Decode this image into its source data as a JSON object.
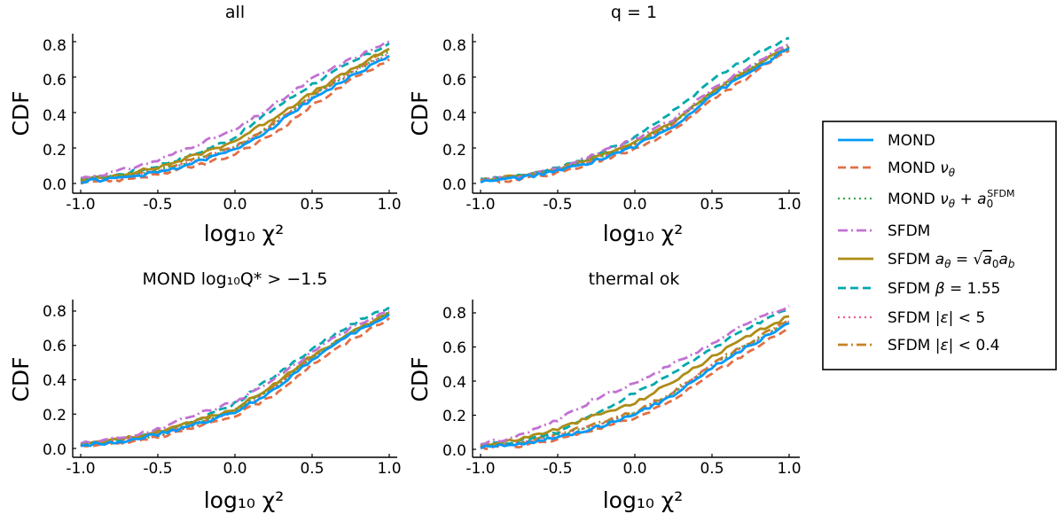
{
  "figure": {
    "legend_placement": "right",
    "legend": [
      {
        "id": "mond",
        "label": "MOND",
        "color": "#009AFA",
        "dash": "solid"
      },
      {
        "id": "mond_nu",
        "label": "MOND ν_θ",
        "color": "#E26F46",
        "dash": "dash"
      },
      {
        "id": "mond_nu_a0",
        "label": "MOND ν_θ + a_0^SFDM",
        "color": "#3EA44E",
        "dash": "dot"
      },
      {
        "id": "sfdm",
        "label": "SFDM",
        "color": "#C271D2",
        "dash": "dashdot"
      },
      {
        "id": "sfdm_atheta",
        "label": "SFDM a_θ = √(a_0 a_b)",
        "color": "#AC8D18",
        "dash": "solid"
      },
      {
        "id": "sfdm_beta",
        "label": "SFDM β = 1.55",
        "color": "#00A9AD",
        "dash": "dash"
      },
      {
        "id": "sfdm_eps5",
        "label": "SFDM |ε| < 5",
        "color": "#ED5D92",
        "dash": "dot"
      },
      {
        "id": "sfdm_eps04",
        "label": "SFDM |ε| < 0.4",
        "color": "#C68225",
        "dash": "dashdot"
      }
    ]
  },
  "chart_data": [
    {
      "type": "line",
      "title": "all",
      "xlabel": "log₁₀ χ²",
      "ylabel": "CDF",
      "xlim": [
        -1.05,
        1.05
      ],
      "ylim": [
        -0.02,
        0.84
      ],
      "xticks": [
        "-1.0",
        "-0.5",
        "0.0",
        "0.5",
        "1.0"
      ],
      "yticks": [
        "0.0",
        "0.2",
        "0.4",
        "0.6",
        "0.8"
      ],
      "grid": false,
      "x": [
        -1.0,
        -0.75,
        -0.5,
        -0.25,
        0.0,
        0.25,
        0.5,
        0.75,
        1.0
      ],
      "series": [
        {
          "name": "MOND",
          "values": [
            0.01,
            0.03,
            0.06,
            0.12,
            0.19,
            0.32,
            0.48,
            0.6,
            0.72
          ]
        },
        {
          "name": "MOND ν_θ",
          "values": [
            0.01,
            0.02,
            0.05,
            0.1,
            0.16,
            0.28,
            0.44,
            0.58,
            0.7
          ]
        },
        {
          "name": "MOND ν_θ + a_0^SFDM",
          "values": [
            0.02,
            0.04,
            0.07,
            0.13,
            0.2,
            0.33,
            0.49,
            0.62,
            0.74
          ]
        },
        {
          "name": "SFDM",
          "values": [
            0.03,
            0.07,
            0.13,
            0.22,
            0.3,
            0.44,
            0.59,
            0.7,
            0.8
          ]
        },
        {
          "name": "SFDM a_θ = √(a_0 a_b)",
          "values": [
            0.02,
            0.05,
            0.09,
            0.16,
            0.24,
            0.37,
            0.51,
            0.64,
            0.76
          ]
        },
        {
          "name": "SFDM β = 1.55",
          "values": [
            0.02,
            0.05,
            0.1,
            0.17,
            0.26,
            0.42,
            0.56,
            0.68,
            0.79
          ]
        },
        {
          "name": "SFDM |ε| < 5",
          "values": [
            0.02,
            0.04,
            0.07,
            0.13,
            0.2,
            0.33,
            0.49,
            0.62,
            0.74
          ]
        },
        {
          "name": "SFDM |ε| < 0.4",
          "values": [
            0.02,
            0.04,
            0.08,
            0.14,
            0.21,
            0.34,
            0.5,
            0.63,
            0.75
          ]
        }
      ]
    },
    {
      "type": "line",
      "title": "q = 1",
      "xlabel": "log₁₀ χ²",
      "ylabel": "CDF",
      "xlim": [
        -1.05,
        1.05
      ],
      "ylim": [
        -0.02,
        0.84
      ],
      "xticks": [
        "-1.0",
        "-0.5",
        "0.0",
        "0.5",
        "1.0"
      ],
      "yticks": [
        "0.0",
        "0.2",
        "0.4",
        "0.6",
        "0.8"
      ],
      "grid": false,
      "x": [
        -1.0,
        -0.75,
        -0.5,
        -0.25,
        0.0,
        0.25,
        0.5,
        0.75,
        1.0
      ],
      "series": [
        {
          "name": "MOND",
          "values": [
            0.01,
            0.03,
            0.07,
            0.13,
            0.21,
            0.32,
            0.5,
            0.63,
            0.76
          ]
        },
        {
          "name": "MOND ν_θ",
          "values": [
            0.01,
            0.02,
            0.06,
            0.12,
            0.19,
            0.3,
            0.47,
            0.61,
            0.75
          ]
        },
        {
          "name": "MOND ν_θ + a_0^SFDM",
          "values": [
            0.02,
            0.04,
            0.08,
            0.14,
            0.22,
            0.34,
            0.51,
            0.65,
            0.77
          ]
        },
        {
          "name": "SFDM",
          "values": [
            0.02,
            0.04,
            0.08,
            0.17,
            0.25,
            0.36,
            0.53,
            0.67,
            0.79
          ]
        },
        {
          "name": "SFDM a_θ = √(a_0 a_b)",
          "values": [
            0.02,
            0.04,
            0.08,
            0.15,
            0.23,
            0.35,
            0.52,
            0.65,
            0.77
          ]
        },
        {
          "name": "SFDM β = 1.55",
          "values": [
            0.02,
            0.04,
            0.09,
            0.16,
            0.26,
            0.41,
            0.58,
            0.72,
            0.82
          ]
        },
        {
          "name": "SFDM |ε| < 5",
          "values": [
            0.02,
            0.04,
            0.08,
            0.14,
            0.22,
            0.34,
            0.51,
            0.65,
            0.77
          ]
        },
        {
          "name": "SFDM |ε| < 0.4",
          "values": [
            0.02,
            0.04,
            0.08,
            0.14,
            0.22,
            0.34,
            0.51,
            0.65,
            0.78
          ]
        }
      ]
    },
    {
      "type": "line",
      "title": "MOND log₁₀Q* > −1.5",
      "xlabel": "log₁₀ χ²",
      "ylabel": "CDF",
      "xlim": [
        -1.05,
        1.05
      ],
      "ylim": [
        -0.02,
        0.84
      ],
      "xticks": [
        "-1.0",
        "-0.5",
        "0.0",
        "0.5",
        "1.0"
      ],
      "yticks": [
        "0.0",
        "0.2",
        "0.4",
        "0.6",
        "0.8"
      ],
      "grid": false,
      "x": [
        -1.0,
        -0.75,
        -0.5,
        -0.25,
        0.0,
        0.25,
        0.5,
        0.75,
        1.0
      ],
      "series": [
        {
          "name": "MOND",
          "values": [
            0.02,
            0.04,
            0.08,
            0.14,
            0.21,
            0.34,
            0.52,
            0.66,
            0.78
          ]
        },
        {
          "name": "MOND ν_θ",
          "values": [
            0.01,
            0.03,
            0.07,
            0.12,
            0.19,
            0.31,
            0.49,
            0.63,
            0.76
          ]
        },
        {
          "name": "MOND ν_θ + a_0^SFDM",
          "values": [
            0.02,
            0.04,
            0.08,
            0.14,
            0.22,
            0.35,
            0.53,
            0.67,
            0.79
          ]
        },
        {
          "name": "SFDM",
          "values": [
            0.03,
            0.06,
            0.11,
            0.2,
            0.27,
            0.4,
            0.56,
            0.7,
            0.8
          ]
        },
        {
          "name": "SFDM a_θ = √(a_0 a_b)",
          "values": [
            0.02,
            0.05,
            0.1,
            0.16,
            0.23,
            0.37,
            0.54,
            0.67,
            0.79
          ]
        },
        {
          "name": "SFDM β = 1.55",
          "values": [
            0.02,
            0.05,
            0.1,
            0.17,
            0.26,
            0.42,
            0.58,
            0.72,
            0.82
          ]
        },
        {
          "name": "SFDM |ε| < 5",
          "values": [
            0.02,
            0.04,
            0.08,
            0.14,
            0.22,
            0.35,
            0.53,
            0.67,
            0.79
          ]
        },
        {
          "name": "SFDM |ε| < 0.4",
          "values": [
            0.02,
            0.04,
            0.09,
            0.15,
            0.22,
            0.36,
            0.53,
            0.67,
            0.79
          ]
        }
      ]
    },
    {
      "type": "line",
      "title": "thermal ok",
      "xlabel": "log₁₀ χ²",
      "ylabel": "CDF",
      "xlim": [
        -1.05,
        1.05
      ],
      "ylim": [
        -0.02,
        0.87
      ],
      "xticks": [
        "-1.0",
        "-0.5",
        "0.0",
        "0.5",
        "1.0"
      ],
      "yticks": [
        "0.0",
        "0.2",
        "0.4",
        "0.6",
        "0.8"
      ],
      "grid": false,
      "x": [
        -1.0,
        -0.75,
        -0.5,
        -0.25,
        0.0,
        0.25,
        0.5,
        0.75,
        1.0
      ],
      "series": [
        {
          "name": "MOND",
          "values": [
            0.01,
            0.03,
            0.07,
            0.13,
            0.2,
            0.32,
            0.48,
            0.61,
            0.74
          ]
        },
        {
          "name": "MOND ν_θ",
          "values": [
            0.01,
            0.02,
            0.06,
            0.12,
            0.18,
            0.29,
            0.44,
            0.58,
            0.71
          ]
        },
        {
          "name": "MOND ν_θ + a_0^SFDM",
          "values": [
            0.02,
            0.04,
            0.08,
            0.14,
            0.21,
            0.33,
            0.49,
            0.62,
            0.75
          ]
        },
        {
          "name": "SFDM",
          "values": [
            0.03,
            0.08,
            0.17,
            0.3,
            0.39,
            0.5,
            0.62,
            0.75,
            0.84
          ]
        },
        {
          "name": "SFDM a_θ = √(a_0 a_b)",
          "values": [
            0.02,
            0.06,
            0.12,
            0.2,
            0.27,
            0.4,
            0.54,
            0.67,
            0.78
          ]
        },
        {
          "name": "SFDM β = 1.55",
          "values": [
            0.02,
            0.05,
            0.1,
            0.21,
            0.33,
            0.45,
            0.59,
            0.72,
            0.82
          ]
        },
        {
          "name": "SFDM |ε| < 5",
          "values": [
            0.02,
            0.04,
            0.08,
            0.14,
            0.21,
            0.33,
            0.49,
            0.62,
            0.75
          ]
        },
        {
          "name": "SFDM |ε| < 0.4",
          "values": [
            0.02,
            0.04,
            0.09,
            0.15,
            0.22,
            0.34,
            0.5,
            0.63,
            0.76
          ]
        }
      ]
    }
  ]
}
